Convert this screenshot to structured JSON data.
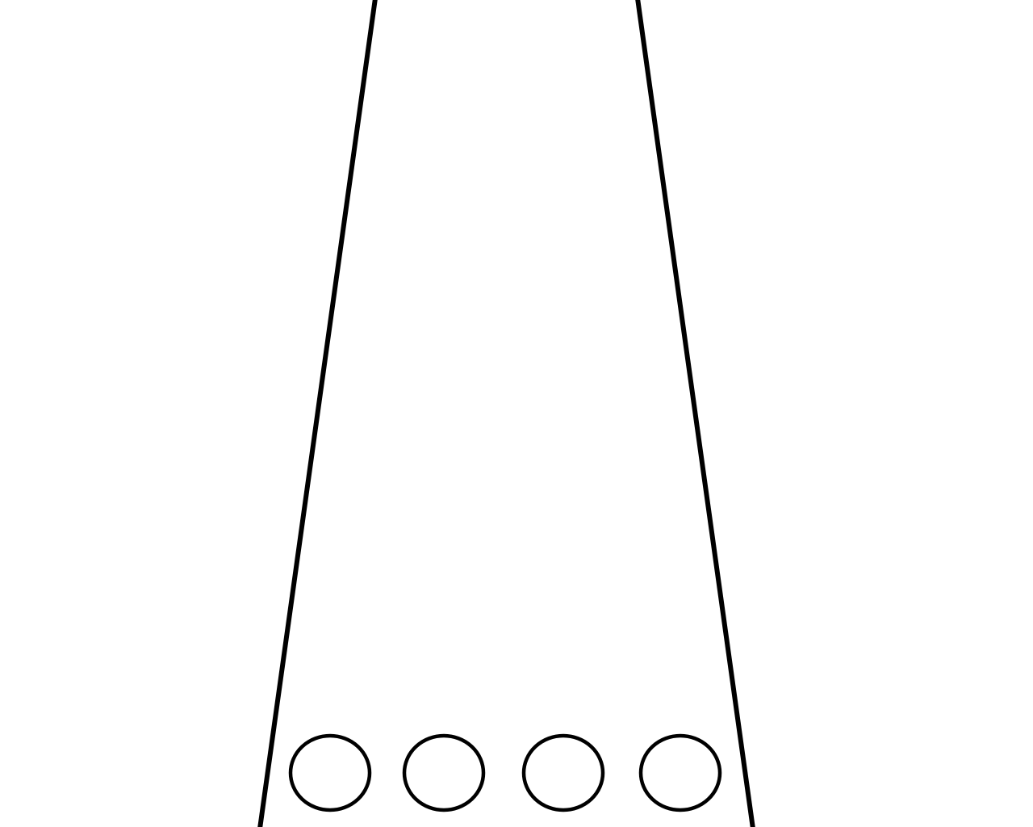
{
  "colors": {
    "background": "#ffffff",
    "stroke": "#000000"
  },
  "shapes": {
    "trapezoid": {
      "name": "trapezoid-outline"
    },
    "circles": [
      {
        "name": "circle-1"
      },
      {
        "name": "circle-2"
      },
      {
        "name": "circle-3"
      },
      {
        "name": "circle-4"
      }
    ]
  }
}
